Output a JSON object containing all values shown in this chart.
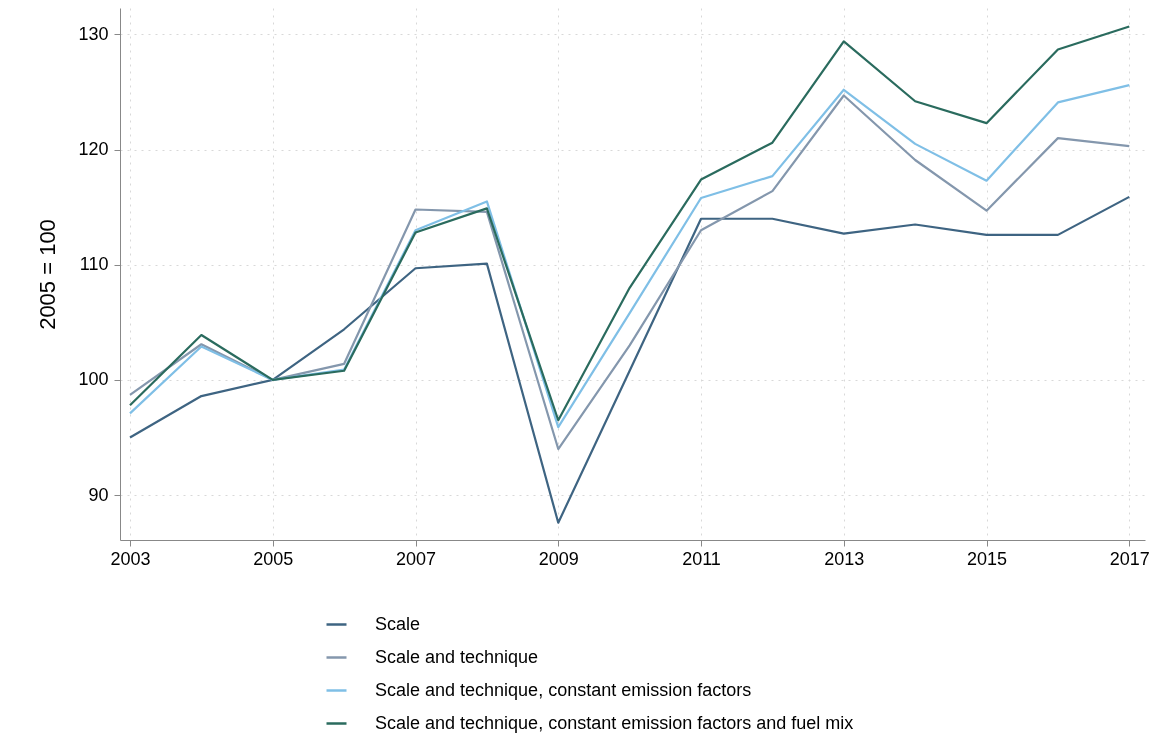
{
  "chart_data": {
    "type": "line",
    "ylabel": "2005 = 100",
    "x": [
      2003,
      2004,
      2005,
      2006,
      2007,
      2008,
      2009,
      2010,
      2011,
      2012,
      2013,
      2014,
      2015,
      2016,
      2017
    ],
    "series": [
      {
        "name": "Scale",
        "color": "#3e6482",
        "values": [
          95.0,
          98.6,
          100,
          104.4,
          109.7,
          110.1,
          87.6,
          100.8,
          114.0,
          114.0,
          112.7,
          113.5,
          112.6,
          112.6,
          115.9
        ]
      },
      {
        "name": "Scale and technique",
        "color": "#8497ad",
        "values": [
          98.7,
          103.1,
          100,
          101.4,
          114.8,
          114.6,
          94.0,
          103.0,
          113.0,
          116.4,
          124.7,
          119.1,
          114.7,
          121.0,
          120.3
        ]
      },
      {
        "name": "Scale and technique, constant emission factors",
        "color": "#7fbfe6",
        "values": [
          97.1,
          102.9,
          100,
          100.9,
          113.0,
          115.5,
          95.9,
          105.8,
          115.8,
          117.7,
          125.2,
          120.5,
          117.3,
          124.1,
          125.6
        ]
      },
      {
        "name": "Scale and technique, constant emission factors and fuel mix",
        "color": "#2a6b5e",
        "values": [
          97.8,
          103.9,
          100,
          100.8,
          112.8,
          114.9,
          96.5,
          108.0,
          117.4,
          120.6,
          129.4,
          124.2,
          122.3,
          128.7,
          130.7
        ]
      }
    ],
    "xlim": [
      2002.86,
      2017.22
    ],
    "xticks": [
      2003,
      2005,
      2007,
      2009,
      2011,
      2013,
      2015,
      2017
    ],
    "ylim": [
      86.1,
      132.3
    ],
    "yticks": [
      90,
      100,
      110,
      120,
      130
    ],
    "grid": true,
    "legend": "bottom",
    "marker": "none",
    "line_style": "solid"
  }
}
